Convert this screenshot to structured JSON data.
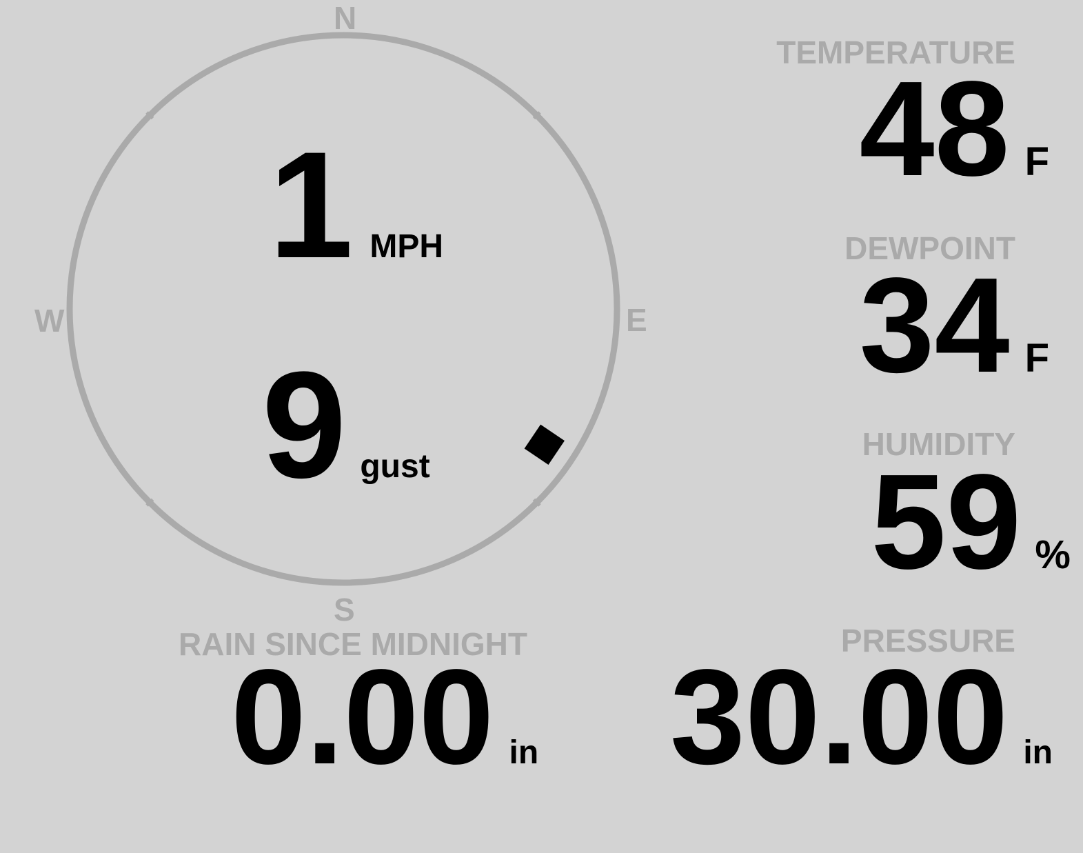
{
  "compass": {
    "n": "N",
    "e": "E",
    "s": "S",
    "w": "W",
    "direction_deg": 124,
    "ring_color": "#aaaaaa"
  },
  "wind": {
    "speed": "1",
    "speed_unit": "MPH",
    "gust": "9",
    "gust_unit": "gust"
  },
  "temperature": {
    "label": "TEMPERATURE",
    "value": "48",
    "unit": "F"
  },
  "dewpoint": {
    "label": "DEWPOINT",
    "value": "34",
    "unit": "F"
  },
  "humidity": {
    "label": "HUMIDITY",
    "value": "59",
    "unit": "%"
  },
  "rain": {
    "label": "RAIN SINCE MIDNIGHT",
    "value": "0.00",
    "unit": "in"
  },
  "pressure": {
    "label": "PRESSURE",
    "value": "30.00",
    "unit": "in"
  },
  "colors": {
    "background": "#d3d3d3",
    "label": "#aaaaaa",
    "value": "#000000"
  }
}
